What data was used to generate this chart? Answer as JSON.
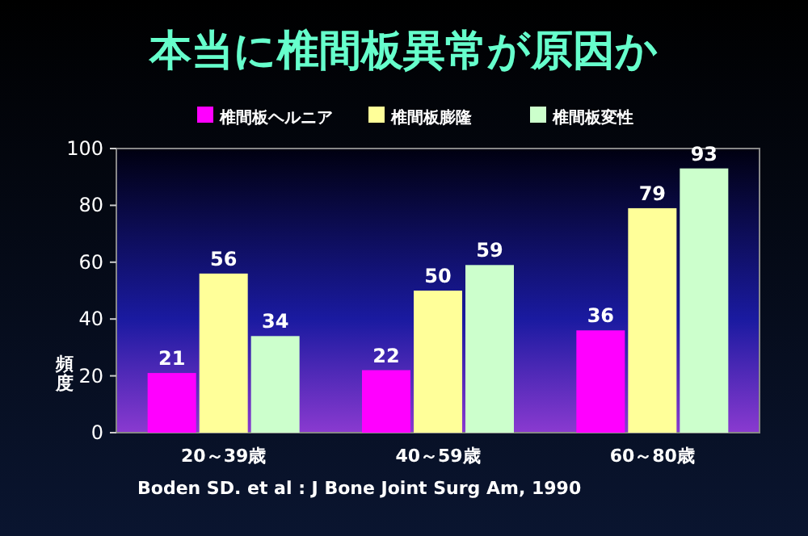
{
  "chart_data": {
    "type": "bar",
    "title": "本当に椎間板異常が原因か",
    "ylabel": "頻度",
    "categories": [
      "20～39歳",
      "40～59歳",
      "60～80歳"
    ],
    "series": [
      {
        "name": "椎間板ヘルニア",
        "color": "#ff00ff",
        "values": [
          21,
          22,
          36
        ]
      },
      {
        "name": "椎間板膨隆",
        "color": "#ffff99",
        "values": [
          56,
          50,
          79
        ]
      },
      {
        "name": "椎間板変性",
        "color": "#ccffcc",
        "values": [
          34,
          59,
          93
        ]
      }
    ],
    "ylim": [
      0,
      100
    ],
    "yticks": [
      0,
      20,
      40,
      60,
      80,
      100
    ],
    "data_labels": true,
    "legend": "top",
    "grid": false,
    "annotations": [
      "Boden SD. et al : J Bone Joint Surg Am, 1990"
    ]
  }
}
